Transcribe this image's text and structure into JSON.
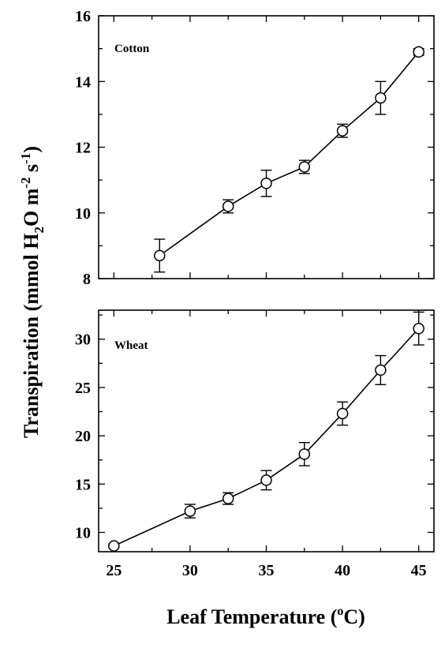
{
  "chart_data": [
    {
      "type": "line",
      "panel_label": "Cotton",
      "x": [
        28,
        32.5,
        35,
        37.5,
        40,
        42.5,
        45
      ],
      "values": [
        8.7,
        10.2,
        10.9,
        11.4,
        12.5,
        13.5,
        14.9
      ],
      "errors": [
        0.5,
        0.2,
        0.4,
        0.2,
        0.2,
        0.5,
        0.1
      ],
      "xlim": [
        24,
        46
      ],
      "ylim": [
        8,
        16
      ],
      "yticks": [
        8,
        10,
        12,
        14,
        16
      ],
      "grid": false,
      "markers": "open-circle"
    },
    {
      "type": "line",
      "panel_label": "Wheat",
      "x": [
        25,
        30,
        32.5,
        35,
        37.5,
        40,
        42.5,
        45
      ],
      "values": [
        8.6,
        12.2,
        13.5,
        15.4,
        18.1,
        22.3,
        26.8,
        31.1
      ],
      "errors": [
        0.2,
        0.7,
        0.6,
        1.0,
        1.2,
        1.2,
        1.5,
        1.7
      ],
      "xlim": [
        24,
        46
      ],
      "ylim": [
        8,
        33
      ],
      "yticks": [
        10,
        15,
        20,
        25,
        30
      ],
      "xticks": [
        25,
        30,
        35,
        40,
        45
      ],
      "grid": false,
      "markers": "open-circle"
    }
  ],
  "ylabel_main": "Transpiration (mmol H",
  "ylabel_sub": "2",
  "ylabel_mid": "O m",
  "ylabel_sup1": "-2",
  "ylabel_mid2": " s",
  "ylabel_sup2": "-1",
  "ylabel_end": ")",
  "xlabel_main": "Leaf Temperature (",
  "xlabel_sup": "o",
  "xlabel_end": "C)"
}
